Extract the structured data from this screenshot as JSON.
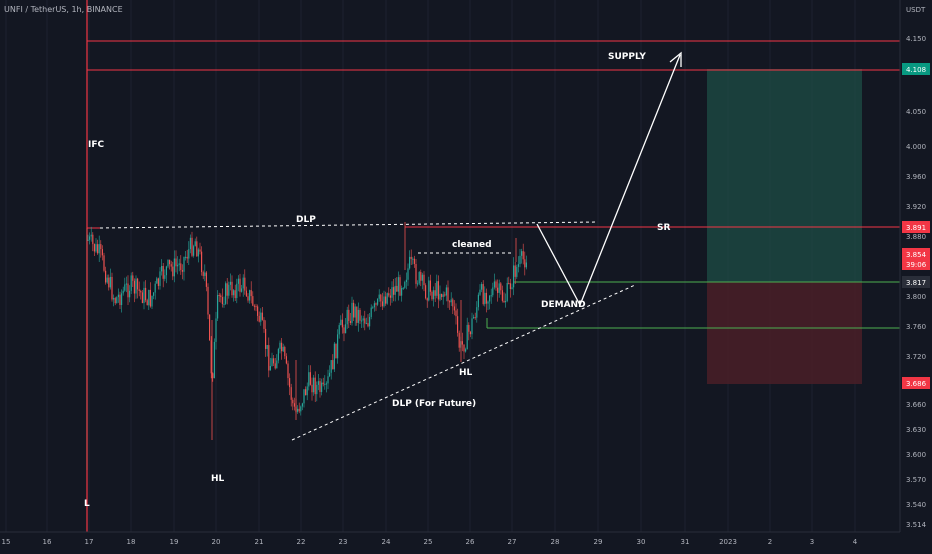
{
  "header": {
    "symbol_line": "UNFI / TetherUS, 1h, BINANCE"
  },
  "axis": {
    "currency": "USDT",
    "y_ticks": [
      "4.150",
      "4.108",
      "4.050",
      "4.000",
      "3.960",
      "3.920",
      "3.880",
      "3.840",
      "3.800",
      "3.760",
      "3.720",
      "3.686",
      "3.660",
      "3.630",
      "3.600",
      "3.570",
      "3.540",
      "3.514"
    ],
    "x_ticks": [
      "15",
      "16",
      "17",
      "18",
      "19",
      "20",
      "21",
      "22",
      "23",
      "24",
      "25",
      "26",
      "27",
      "28",
      "29",
      "30",
      "31",
      "2023",
      "2",
      "3",
      "4",
      "5"
    ]
  },
  "price_tags": {
    "target": "4.108",
    "sr": "3.891",
    "current_price": "3.854",
    "current_countdown": "39:06",
    "entry": "3.817",
    "stop": "3.686"
  },
  "annotations": {
    "supply": "SUPPLY",
    "ifc": "IFC",
    "dlp": "DLP",
    "cleaned": "cleaned",
    "sr": "SR",
    "demand": "DEMAND",
    "hl_right": "HL",
    "dlp_future": "DLP (For Future)",
    "hl_left": "HL",
    "l": "L"
  },
  "colors": {
    "background": "#131722",
    "up_candle": "#26a69a",
    "down_candle": "#ef5350",
    "level_red": "#f23645",
    "level_green": "#4caf50",
    "profit_zone": "#1e4d45",
    "loss_zone": "#4a1f27"
  },
  "chart_data": {
    "type": "candlestick",
    "y_scale": "price",
    "ylim": [
      3.51,
      4.16
    ],
    "x_range": [
      "15",
      "5"
    ],
    "levels": {
      "supply_top": 4.15,
      "supply_bottom": 4.108,
      "sr": 3.891,
      "entry": 3.817,
      "demand_low": 3.76,
      "stop": 3.686
    },
    "position": {
      "entry": 3.817,
      "target": 4.108,
      "stop": 3.686
    },
    "last_price": 3.854
  }
}
